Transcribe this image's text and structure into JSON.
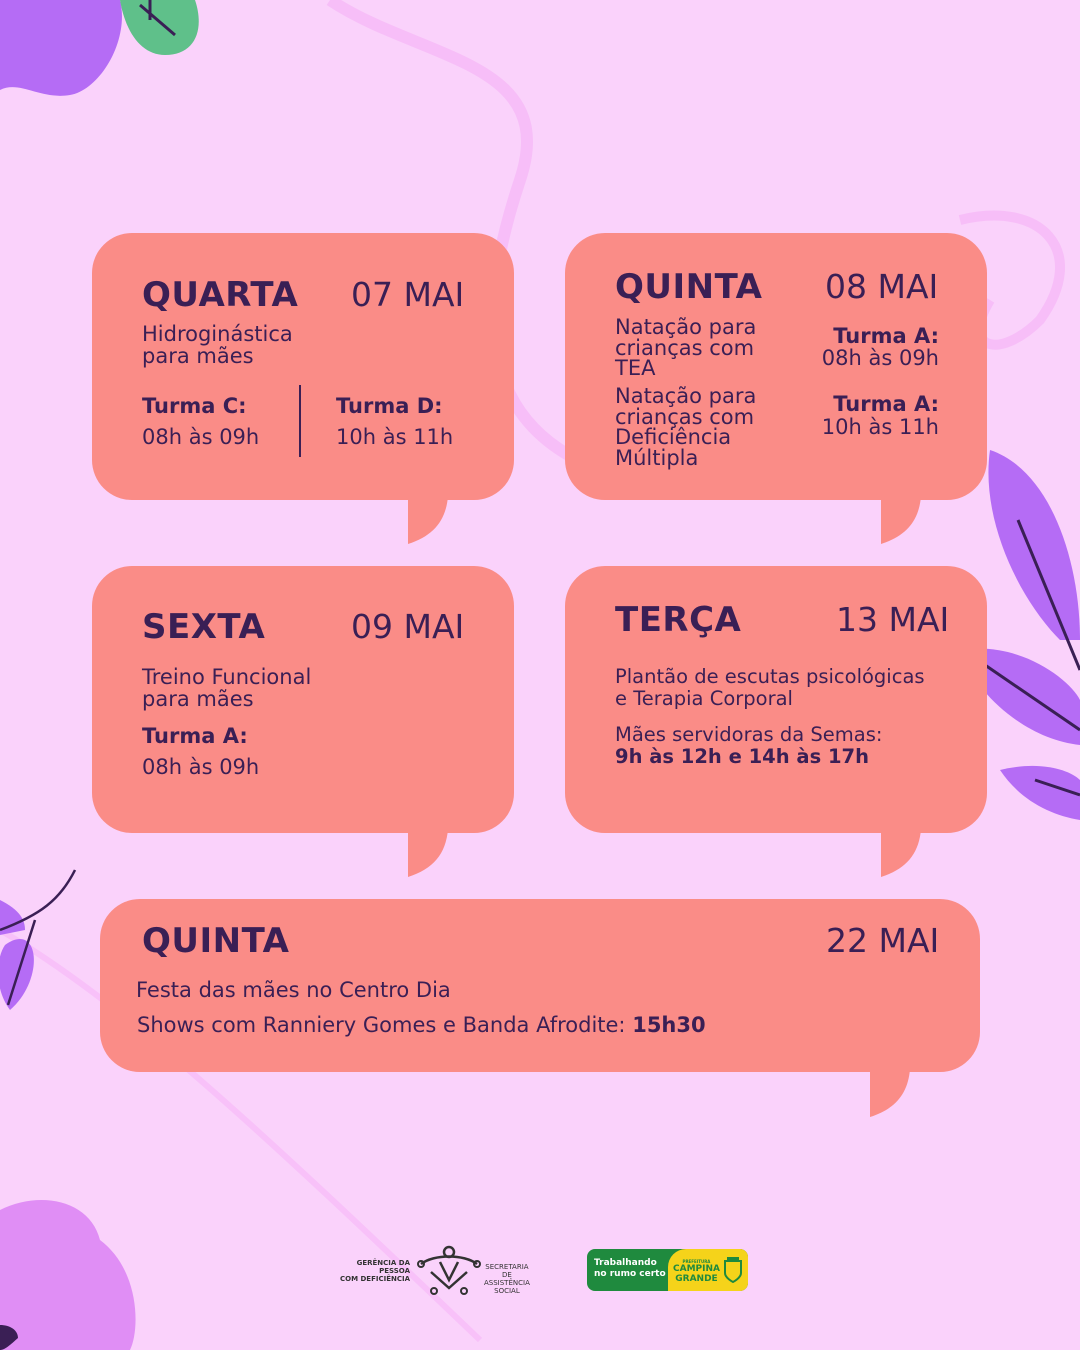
{
  "colors": {
    "background": "#fad2fb",
    "card": "#fa8c87",
    "text": "#3a1f55",
    "leaf": "#b56cf5",
    "leaf_green": "#5fc08a"
  },
  "cards": [
    {
      "day": "QUARTA",
      "date": "07 MAI",
      "title_lines": [
        "Hidroginástica",
        "para mães"
      ],
      "groups": [
        {
          "label": "Turma C:",
          "time": "08h às 09h"
        },
        {
          "label": "Turma D:",
          "time": "10h às 11h"
        }
      ]
    },
    {
      "day": "QUINTA",
      "date": "08 MAI",
      "activities": [
        {
          "lines": [
            "Natação para",
            "crianças com",
            "TEA"
          ],
          "label": "Turma A:",
          "time": "08h às 09h"
        },
        {
          "lines": [
            "Natação para",
            "crianças com",
            "Deficiência",
            "Múltipla"
          ],
          "label": "Turma A:",
          "time": "10h às 11h"
        }
      ]
    },
    {
      "day": "SEXTA",
      "date": "09 MAI",
      "title_lines": [
        "Treino Funcional",
        "para mães"
      ],
      "label": "Turma A:",
      "time": "08h às 09h"
    },
    {
      "day": "TERÇA",
      "date": "13 MAI",
      "title_lines": [
        "Plantão de escutas psicológicas",
        "e Terapia Corporal"
      ],
      "audience": "Mães servidoras da Semas:",
      "time": "9h às 12h e 14h às 17h"
    },
    {
      "day": "QUINTA",
      "date": "22 MAI",
      "line1": "Festa das mães no Centro Dia",
      "line2": "Shows com Ranniery Gomes e Banda Afrodite:",
      "line2_time": "15h30"
    }
  ],
  "footer": {
    "gerencia": [
      "GERÊNCIA DA PESSOA",
      "COM DEFICIÊNCIA"
    ],
    "secretaria": [
      "SECRETARIA DE",
      "ASSISTÊNCIA SOCIAL"
    ],
    "slogan": [
      "Trabalhando",
      "no rumo certo"
    ],
    "prefeitura": [
      "PREFEITURA",
      "CAMPINA",
      "GRANDE"
    ]
  }
}
